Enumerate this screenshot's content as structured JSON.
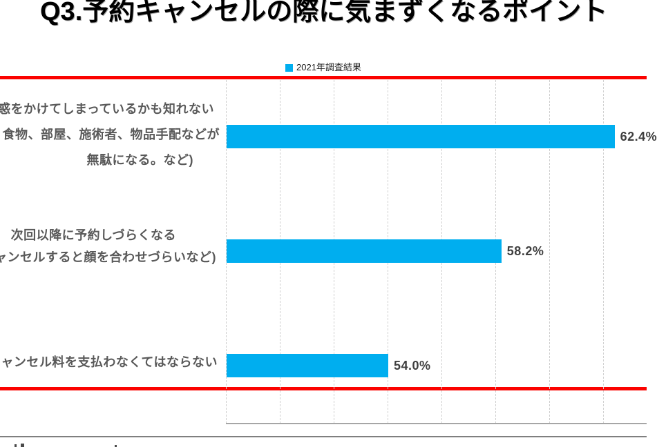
{
  "title": "Q3.予約キャンセルの際に気まずくなるポイント",
  "legend": {
    "label": "2021年調査結果",
    "swatch_color": "#00AEEF"
  },
  "colors": {
    "bar": "#00AEEF",
    "accent_line": "#FB0200",
    "gridline": "#cfcfcf",
    "category_text": "#595959",
    "value_text": "#3f3f3f"
  },
  "chart_data": {
    "type": "bar",
    "orientation": "horizontal",
    "title": "Q3.予約キャンセルの際に気まずくなるポイント",
    "series_name": "2021年調査結果",
    "categories": [
      {
        "lines": [
          "惑をかけてしまっているかも知れない",
          "食物、部屋、施術者、物品手配などが",
          "無駄になる。など)"
        ]
      },
      {
        "lines": [
          "次回以降に予約しづらくなる",
          "ャンセルすると顔を合わせづらいなど)"
        ]
      },
      {
        "lines": [
          "ャンセル料を支払わなくてはならない"
        ]
      }
    ],
    "values": [
      62.4,
      58.2,
      54.0
    ],
    "value_labels": [
      "62.4%",
      "58.2%",
      "54.0%"
    ],
    "xlabel": "",
    "ylabel": "",
    "axis": {
      "min": 48,
      "max": 64,
      "gridline_step": 2,
      "tick_labels_visible": false
    },
    "grid": true,
    "legend_position": "top-center"
  }
}
